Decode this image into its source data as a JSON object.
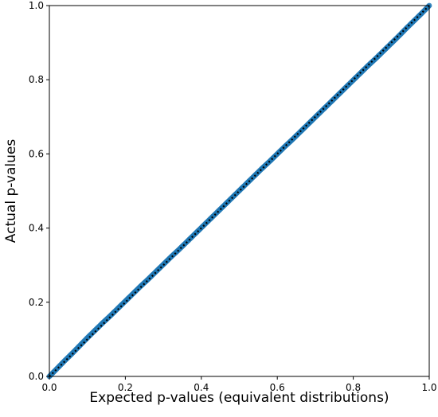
{
  "chart_data": {
    "type": "scatter",
    "title": "",
    "xlabel": "Expected p-values (equivalent distributions)",
    "ylabel": "Actual p-values",
    "xlim": [
      0.0,
      1.0
    ],
    "ylim": [
      0.0,
      1.0
    ],
    "xticks": [
      "0.0",
      "0.2",
      "0.4",
      "0.6",
      "0.8",
      "1.0"
    ],
    "yticks": [
      "0.0",
      "0.2",
      "0.4",
      "0.6",
      "0.8",
      "1.0"
    ],
    "grid": false,
    "legend": "none",
    "series": [
      {
        "color": "#1f77b4",
        "marker": "circle",
        "x": [
          0.0,
          0.02,
          0.04,
          0.06,
          0.08,
          0.1,
          0.12,
          0.14,
          0.16,
          0.18,
          0.2,
          0.22,
          0.24,
          0.26,
          0.28,
          0.3,
          0.32,
          0.34,
          0.36,
          0.38,
          0.4,
          0.42,
          0.44,
          0.46,
          0.48,
          0.5,
          0.52,
          0.54,
          0.56,
          0.58,
          0.6,
          0.62,
          0.64,
          0.66,
          0.68,
          0.7,
          0.72,
          0.74,
          0.76,
          0.78,
          0.8,
          0.82,
          0.84,
          0.86,
          0.88,
          0.9,
          0.92,
          0.94,
          0.96,
          0.98,
          1.0
        ],
        "y": [
          0.0,
          0.021,
          0.042,
          0.062,
          0.083,
          0.104,
          0.124,
          0.144,
          0.163,
          0.183,
          0.203,
          0.223,
          0.243,
          0.262,
          0.282,
          0.302,
          0.322,
          0.341,
          0.361,
          0.381,
          0.401,
          0.421,
          0.441,
          0.461,
          0.481,
          0.501,
          0.521,
          0.541,
          0.561,
          0.58,
          0.6,
          0.62,
          0.639,
          0.659,
          0.679,
          0.699,
          0.719,
          0.739,
          0.759,
          0.779,
          0.799,
          0.819,
          0.839,
          0.858,
          0.878,
          0.898,
          0.918,
          0.939,
          0.959,
          0.979,
          1.0
        ]
      }
    ],
    "reference_line": {
      "style": "dotted",
      "color": "#000000",
      "x": [
        0.0,
        1.0
      ],
      "y": [
        0.0,
        1.0
      ]
    }
  }
}
